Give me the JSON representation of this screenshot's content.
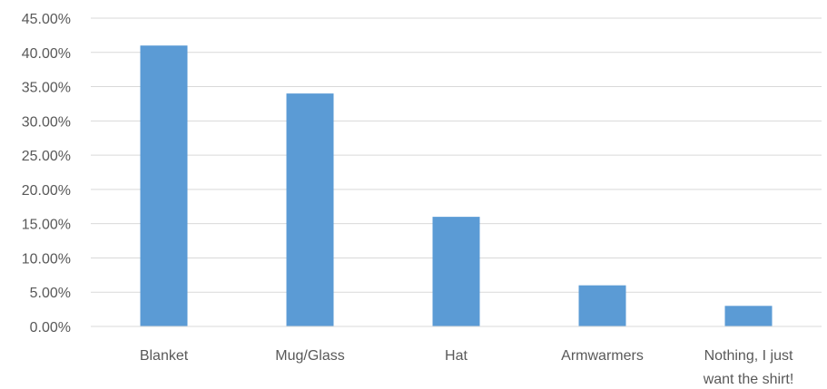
{
  "chart_data": {
    "type": "bar",
    "categories": [
      [
        "Blanket"
      ],
      [
        "Mug/Glass"
      ],
      [
        "Hat"
      ],
      [
        "Armwarmers"
      ],
      [
        "Nothing, I just",
        "want the shirt!"
      ]
    ],
    "values": [
      41.0,
      34.0,
      16.0,
      6.0,
      3.0
    ],
    "y_ticks": [
      "0.00%",
      "5.00%",
      "10.00%",
      "15.00%",
      "20.00%",
      "25.00%",
      "30.00%",
      "35.00%",
      "40.00%",
      "45.00%"
    ],
    "ylim": [
      0,
      45
    ],
    "y_step": 5,
    "grid": true,
    "legend": "none",
    "title": "",
    "xlabel": "",
    "ylabel": "",
    "bar_color": "#5b9bd5",
    "grid_color": "#d9d9d9",
    "text_color": "#595959"
  }
}
